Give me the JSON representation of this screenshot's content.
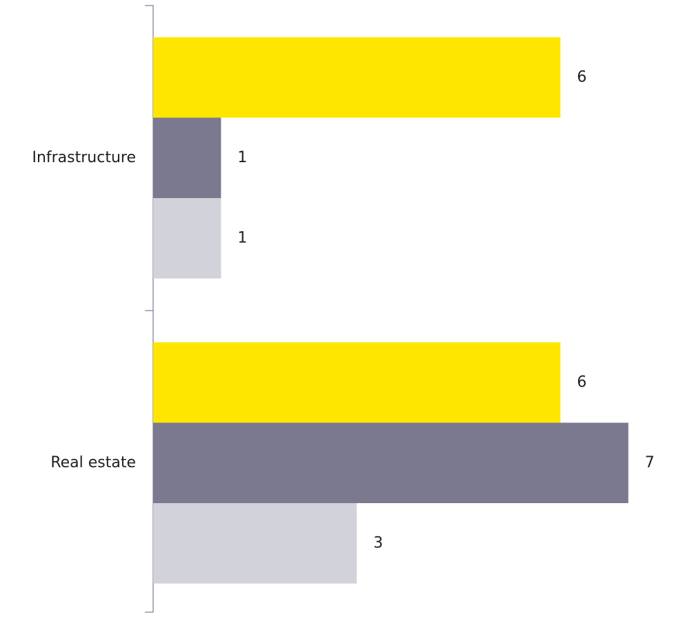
{
  "chart_data": {
    "type": "bar",
    "orientation": "horizontal",
    "categories": [
      "Infrastructure",
      "Real estate"
    ],
    "series": [
      {
        "values": [
          6,
          6
        ],
        "color": "#FFE600"
      },
      {
        "values": [
          1,
          7
        ],
        "color": "#7A7990"
      },
      {
        "values": [
          1,
          3
        ],
        "color": "#D2D2DB"
      }
    ],
    "xlim": [
      0,
      7
    ],
    "grid": false,
    "legend": "none",
    "data_labels": true
  }
}
